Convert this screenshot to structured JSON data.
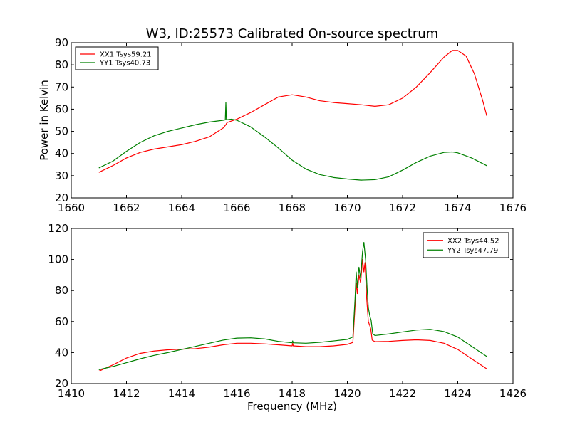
{
  "title": "W3, ID:25573 Calibrated On-source spectrum",
  "colors": {
    "red": "#ff0000",
    "green": "#008000"
  },
  "chart_data": [
    {
      "type": "line",
      "xlabel": "",
      "ylabel": "Power in Kelvin",
      "xlim": [
        1660,
        1676
      ],
      "ylim": [
        20,
        90
      ],
      "xticks": [
        1660,
        1662,
        1664,
        1666,
        1668,
        1670,
        1672,
        1674,
        1676
      ],
      "yticks": [
        20,
        30,
        40,
        50,
        60,
        70,
        80,
        90
      ],
      "legend": "top-left",
      "series": [
        {
          "name": "XX1 Tsys59.21",
          "color": "#ff0000",
          "points": [
            [
              1661.0,
              31.5
            ],
            [
              1661.5,
              34.5
            ],
            [
              1662.0,
              38.0
            ],
            [
              1662.5,
              40.5
            ],
            [
              1663.0,
              42.0
            ],
            [
              1663.5,
              43.0
            ],
            [
              1664.0,
              44.0
            ],
            [
              1664.5,
              45.5
            ],
            [
              1665.0,
              47.5
            ],
            [
              1665.5,
              51.5
            ],
            [
              1665.6,
              53.0
            ],
            [
              1665.62,
              53.5
            ],
            [
              1665.65,
              54.0
            ],
            [
              1666.0,
              55.5
            ],
            [
              1666.5,
              58.5
            ],
            [
              1667.0,
              62.0
            ],
            [
              1667.5,
              65.5
            ],
            [
              1668.0,
              66.5
            ],
            [
              1668.5,
              65.5
            ],
            [
              1669.0,
              63.8
            ],
            [
              1669.5,
              63.0
            ],
            [
              1670.0,
              62.5
            ],
            [
              1670.5,
              62.0
            ],
            [
              1671.0,
              61.3
            ],
            [
              1671.5,
              62.0
            ],
            [
              1672.0,
              65.0
            ],
            [
              1672.5,
              70.0
            ],
            [
              1673.0,
              76.5
            ],
            [
              1673.5,
              83.5
            ],
            [
              1673.8,
              86.5
            ],
            [
              1674.0,
              86.5
            ],
            [
              1674.3,
              84.0
            ],
            [
              1674.6,
              76.0
            ],
            [
              1674.9,
              64.0
            ],
            [
              1675.05,
              57.0
            ]
          ]
        },
        {
          "name": "YY1 Tsys40.73",
          "color": "#008000",
          "points": [
            [
              1661.0,
              33.5
            ],
            [
              1661.5,
              36.5
            ],
            [
              1662.0,
              41.0
            ],
            [
              1662.5,
              45.0
            ],
            [
              1663.0,
              48.0
            ],
            [
              1663.5,
              50.0
            ],
            [
              1664.0,
              51.5
            ],
            [
              1664.5,
              53.0
            ],
            [
              1665.0,
              54.2
            ],
            [
              1665.5,
              55.0
            ],
            [
              1665.58,
              55.2
            ],
            [
              1665.6,
              63.0
            ],
            [
              1665.62,
              55.2
            ],
            [
              1665.8,
              55.5
            ],
            [
              1666.0,
              55.0
            ],
            [
              1666.5,
              52.0
            ],
            [
              1667.0,
              47.5
            ],
            [
              1667.5,
              42.5
            ],
            [
              1668.0,
              37.0
            ],
            [
              1668.5,
              33.0
            ],
            [
              1669.0,
              30.5
            ],
            [
              1669.5,
              29.2
            ],
            [
              1670.0,
              28.5
            ],
            [
              1670.5,
              28.0
            ],
            [
              1671.0,
              28.2
            ],
            [
              1671.5,
              29.5
            ],
            [
              1672.0,
              32.5
            ],
            [
              1672.5,
              36.0
            ],
            [
              1673.0,
              38.8
            ],
            [
              1673.5,
              40.5
            ],
            [
              1673.8,
              40.7
            ],
            [
              1674.0,
              40.3
            ],
            [
              1674.5,
              38.0
            ],
            [
              1675.05,
              34.5
            ]
          ]
        }
      ]
    },
    {
      "type": "line",
      "xlabel": "Frequency (MHz)",
      "ylabel": "",
      "xlim": [
        1410,
        1426
      ],
      "ylim": [
        20,
        120
      ],
      "xticks": [
        1410,
        1412,
        1414,
        1416,
        1418,
        1420,
        1422,
        1424,
        1426
      ],
      "yticks": [
        20,
        40,
        60,
        80,
        100,
        120
      ],
      "legend": "top-right",
      "series": [
        {
          "name": "XX2 Tsys44.52",
          "color": "#ff0000",
          "points": [
            [
              1411.0,
              28.0
            ],
            [
              1411.5,
              32.0
            ],
            [
              1412.0,
              36.5
            ],
            [
              1412.5,
              39.5
            ],
            [
              1413.0,
              41.0
            ],
            [
              1413.5,
              41.8
            ],
            [
              1414.0,
              42.2
            ],
            [
              1414.5,
              42.5
            ],
            [
              1415.0,
              43.5
            ],
            [
              1415.5,
              45.0
            ],
            [
              1416.0,
              46.0
            ],
            [
              1416.5,
              46.0
            ],
            [
              1417.0,
              45.6
            ],
            [
              1417.5,
              45.0
            ],
            [
              1418.0,
              44.3
            ],
            [
              1418.02,
              46.0
            ],
            [
              1418.04,
              44.3
            ],
            [
              1418.5,
              43.8
            ],
            [
              1419.0,
              43.8
            ],
            [
              1419.5,
              44.3
            ],
            [
              1420.0,
              45.3
            ],
            [
              1420.2,
              46.5
            ],
            [
              1420.28,
              70.0
            ],
            [
              1420.32,
              85.0
            ],
            [
              1420.36,
              78.0
            ],
            [
              1420.42,
              90.0
            ],
            [
              1420.48,
              85.0
            ],
            [
              1420.55,
              100.0
            ],
            [
              1420.6,
              92.0
            ],
            [
              1420.64,
              98.0
            ],
            [
              1420.7,
              75.0
            ],
            [
              1420.76,
              60.0
            ],
            [
              1420.82,
              57.0
            ],
            [
              1420.85,
              55.0
            ],
            [
              1420.9,
              48.0
            ],
            [
              1421.0,
              47.0
            ],
            [
              1421.5,
              47.2
            ],
            [
              1422.0,
              47.8
            ],
            [
              1422.5,
              48.2
            ],
            [
              1423.0,
              47.8
            ],
            [
              1423.5,
              46.0
            ],
            [
              1424.0,
              42.0
            ],
            [
              1424.5,
              36.0
            ],
            [
              1425.05,
              29.5
            ]
          ]
        },
        {
          "name": "YY2 Tsys47.79",
          "color": "#008000",
          "points": [
            [
              1411.0,
              29.0
            ],
            [
              1411.5,
              31.0
            ],
            [
              1412.0,
              33.5
            ],
            [
              1412.5,
              36.0
            ],
            [
              1413.0,
              38.2
            ],
            [
              1413.5,
              40.0
            ],
            [
              1414.0,
              42.0
            ],
            [
              1414.5,
              44.0
            ],
            [
              1415.0,
              46.0
            ],
            [
              1415.5,
              48.0
            ],
            [
              1416.0,
              49.3
            ],
            [
              1416.5,
              49.5
            ],
            [
              1417.0,
              48.8
            ],
            [
              1417.5,
              47.2
            ],
            [
              1418.0,
              46.3
            ],
            [
              1418.02,
              47.5
            ],
            [
              1418.04,
              46.3
            ],
            [
              1418.5,
              46.0
            ],
            [
              1419.0,
              46.6
            ],
            [
              1419.5,
              47.5
            ],
            [
              1420.0,
              48.5
            ],
            [
              1420.2,
              50.0
            ],
            [
              1420.28,
              75.0
            ],
            [
              1420.32,
              92.0
            ],
            [
              1420.36,
              82.0
            ],
            [
              1420.42,
              95.0
            ],
            [
              1420.48,
              88.0
            ],
            [
              1420.55,
              105.0
            ],
            [
              1420.6,
              111.0
            ],
            [
              1420.66,
              100.0
            ],
            [
              1420.72,
              80.0
            ],
            [
              1420.76,
              69.0
            ],
            [
              1420.82,
              63.0
            ],
            [
              1420.86,
              61.0
            ],
            [
              1420.92,
              52.0
            ],
            [
              1421.0,
              51.0
            ],
            [
              1421.5,
              52.0
            ],
            [
              1422.0,
              53.3
            ],
            [
              1422.5,
              54.5
            ],
            [
              1423.0,
              55.0
            ],
            [
              1423.5,
              53.5
            ],
            [
              1424.0,
              50.0
            ],
            [
              1424.5,
              44.0
            ],
            [
              1425.05,
              37.5
            ]
          ]
        }
      ]
    }
  ]
}
